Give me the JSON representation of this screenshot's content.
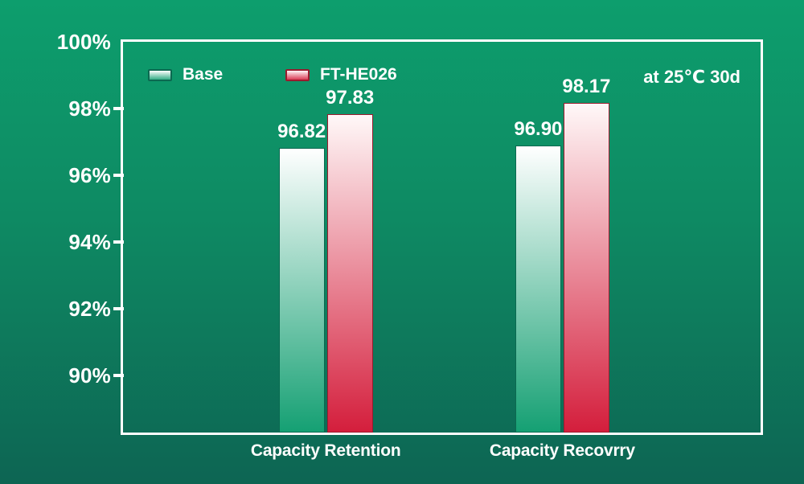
{
  "page": {
    "background_top": "#0D9E6D",
    "background_bottom": "#0D6553",
    "axis_color": "#ffffff",
    "text_color": "#ffffff"
  },
  "chart_data": {
    "type": "bar",
    "title": "",
    "annotation": "at 25℃ 30d",
    "categories": [
      "Capacity Retention",
      "Capacity Recovrry"
    ],
    "series": [
      {
        "name": "Base",
        "values": [
          96.82,
          96.9
        ],
        "value_labels": [
          "96.82",
          "96.90"
        ],
        "gradient_top": "#FFFFFF",
        "gradient_bottom": "#15A073",
        "border_color": "#0B6950"
      },
      {
        "name": "FT-HE026",
        "values": [
          97.83,
          98.17
        ],
        "value_labels": [
          "97.83",
          "98.17"
        ],
        "gradient_top": "#FFF8F8",
        "gradient_bottom": "#D41E3C",
        "border_color": "#9A1B2E"
      }
    ],
    "y_ticks": [
      {
        "label": "100%",
        "value": 100
      },
      {
        "label": "98%",
        "value": 98
      },
      {
        "label": "96%",
        "value": 96
      },
      {
        "label": "94%",
        "value": 94
      },
      {
        "label": "92%",
        "value": 92
      },
      {
        "label": "90%",
        "value": 90
      }
    ],
    "ylim": [
      88.3,
      100
    ],
    "grid": false,
    "legend_position": "top-left",
    "xlabel": "",
    "ylabel": ""
  }
}
